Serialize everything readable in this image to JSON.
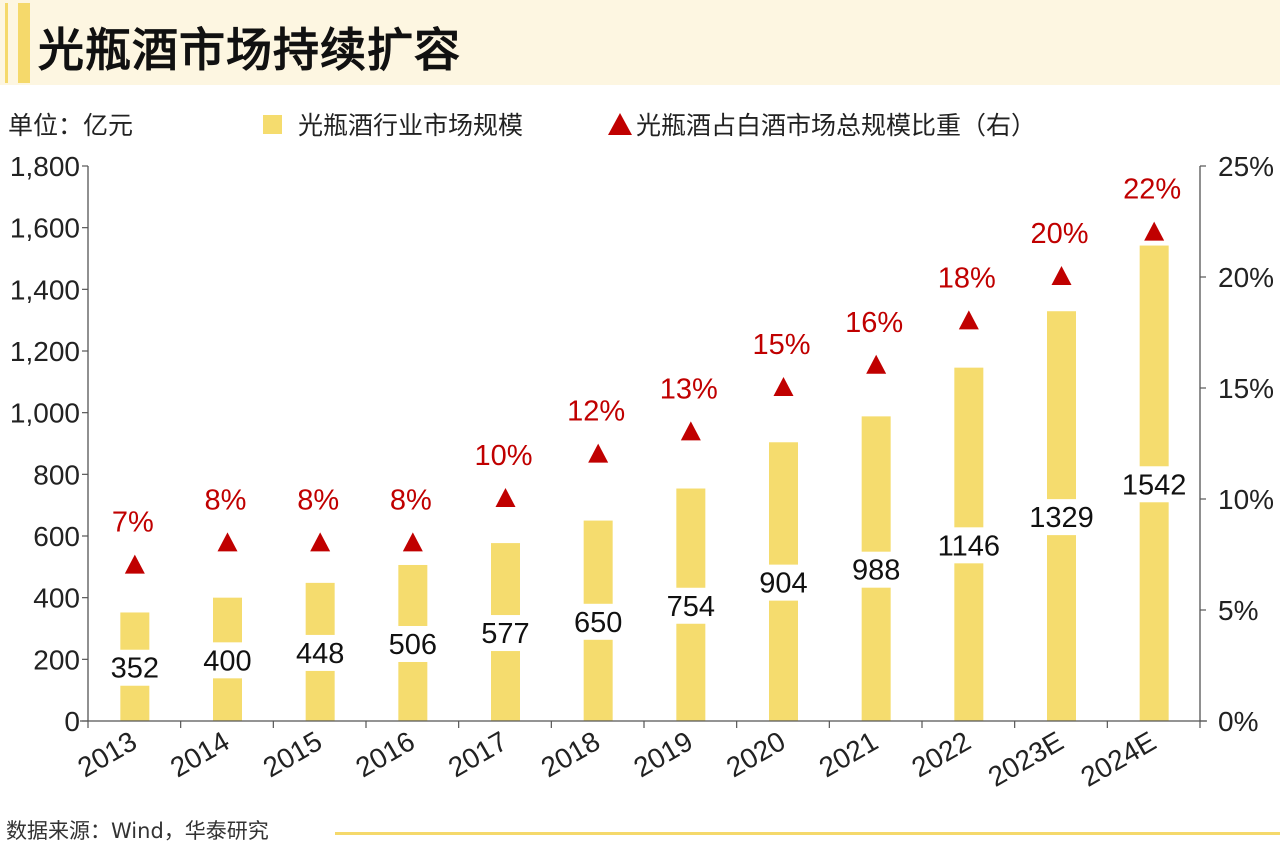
{
  "title": "光瓶酒市场持续扩容",
  "unit_label": "单位：亿元",
  "source": "数据来源：Wind，华泰研究",
  "colors": {
    "bar": "#f5dc6e",
    "marker": "#c00000",
    "accent": "#f5d96b",
    "title_bg": "#fdf6e1"
  },
  "chart_data": {
    "type": "bar",
    "title": "光瓶酒市场持续扩容",
    "categories": [
      "2013",
      "2014",
      "2015",
      "2016",
      "2017",
      "2018",
      "2019",
      "2020",
      "2021",
      "2022",
      "2023E",
      "2024E"
    ],
    "series": [
      {
        "name": "光瓶酒行业市场规模",
        "type": "bar",
        "axis": "left",
        "values": [
          352,
          400,
          448,
          506,
          577,
          650,
          754,
          904,
          988,
          1146,
          1329,
          1542
        ],
        "labels": [
          "352",
          "400",
          "448",
          "506",
          "577",
          "650",
          "754",
          "904",
          "988",
          "1146",
          "1329",
          "1542"
        ]
      },
      {
        "name": "光瓶酒占白酒市场总规模比重（右）",
        "type": "scatter",
        "marker": "triangle",
        "axis": "right",
        "values": [
          7,
          8,
          8,
          8,
          10,
          12,
          13,
          15,
          16,
          18,
          20,
          22
        ],
        "labels": [
          "7%",
          "8%",
          "8%",
          "8%",
          "10%",
          "12%",
          "13%",
          "15%",
          "16%",
          "18%",
          "20%",
          "22%"
        ]
      }
    ],
    "legend": [
      "光瓶酒行业市场规模",
      "光瓶酒占白酒市场总规模比重（右）"
    ],
    "legend_position": "top",
    "ylabel": "单位：亿元",
    "ylim": [
      0,
      1800
    ],
    "y_ticks": [
      "0",
      "200",
      "400",
      "600",
      "800",
      "1,000",
      "1,200",
      "1,400",
      "1,600",
      "1,800"
    ],
    "y2lim": [
      0,
      25
    ],
    "y2_ticks": [
      "0%",
      "5%",
      "10%",
      "15%",
      "20%",
      "25%"
    ],
    "grid": false
  }
}
